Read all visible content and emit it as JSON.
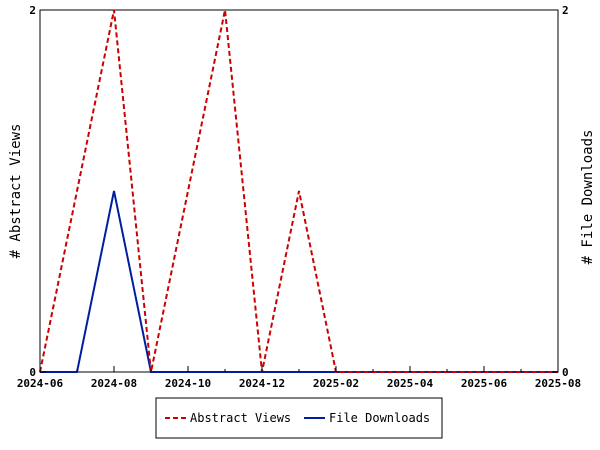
{
  "chart_data": {
    "type": "line",
    "title": "",
    "xlabel": "",
    "ylabel_left": "# Abstract Views",
    "ylabel_right": "# File Downloads",
    "x": [
      "2024-06",
      "2024-07",
      "2024-08",
      "2024-09",
      "2024-10",
      "2024-11",
      "2024-12",
      "2025-01",
      "2025-02",
      "2025-03",
      "2025-04",
      "2025-05",
      "2025-06",
      "2025-07",
      "2025-08"
    ],
    "x_ticks": [
      "2024-06",
      "2024-08",
      "2024-10",
      "2024-12",
      "2025-02",
      "2025-04",
      "2025-06",
      "2025-08"
    ],
    "ylim_left": [
      0,
      2
    ],
    "ylim_right": [
      0,
      2
    ],
    "y_ticks_left": [
      "0",
      "2"
    ],
    "y_ticks_right": [
      "0",
      "2"
    ],
    "grid": false,
    "legend_position": "bottom",
    "series": [
      {
        "name": "Abstract Views",
        "axis": "left",
        "color": "#cc0000",
        "dashed": true,
        "values": [
          0,
          1,
          2,
          0,
          1,
          2,
          0,
          1,
          0,
          0,
          0,
          0,
          0,
          0,
          0
        ]
      },
      {
        "name": "File Downloads",
        "axis": "right",
        "color": "#001f9f",
        "dashed": false,
        "values": [
          0,
          0,
          1,
          0,
          0,
          0,
          0,
          0,
          0,
          0,
          0,
          0,
          0,
          0,
          0
        ]
      }
    ]
  }
}
